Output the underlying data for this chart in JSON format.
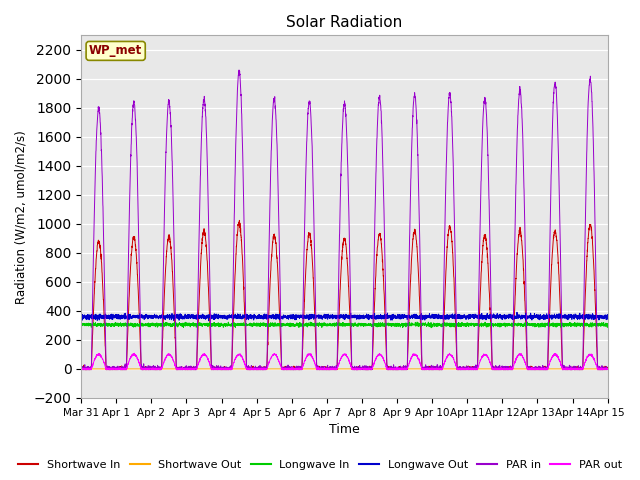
{
  "title": "Solar Radiation",
  "ylabel": "Radiation (W/m2, umol/m2/s)",
  "xlabel": "Time",
  "ylim": [
    -200,
    2300
  ],
  "yticks": [
    -200,
    0,
    200,
    400,
    600,
    800,
    1000,
    1200,
    1400,
    1600,
    1800,
    2000,
    2200
  ],
  "plot_bg_color": "#e8e8e8",
  "fig_bg_color": "#ffffff",
  "station_label": "WP_met",
  "station_label_color": "#8b0000",
  "station_box_fc": "#ffffcc",
  "station_box_ec": "#888800",
  "series": {
    "shortwave_in": {
      "color": "#cc0000",
      "label": "Shortwave In"
    },
    "shortwave_out": {
      "color": "#ffaa00",
      "label": "Shortwave Out"
    },
    "longwave_in": {
      "color": "#00cc00",
      "label": "Longwave In"
    },
    "longwave_out": {
      "color": "#0000cc",
      "label": "Longwave Out"
    },
    "par_in": {
      "color": "#9900cc",
      "label": "PAR in"
    },
    "par_out": {
      "color": "#ff00ff",
      "label": "PAR out"
    }
  },
  "tick_labels": [
    "Mar 31",
    "Apr 1",
    "Apr 2",
    "Apr 3",
    "Apr 4",
    "Apr 5",
    "Apr 6",
    "Apr 7",
    "Apr 8",
    "Apr 9",
    "Apr 10",
    "Apr 11",
    "Apr 12",
    "Apr 13",
    "Apr 14",
    "Apr 15"
  ],
  "n_days": 15,
  "points_per_day": 288
}
